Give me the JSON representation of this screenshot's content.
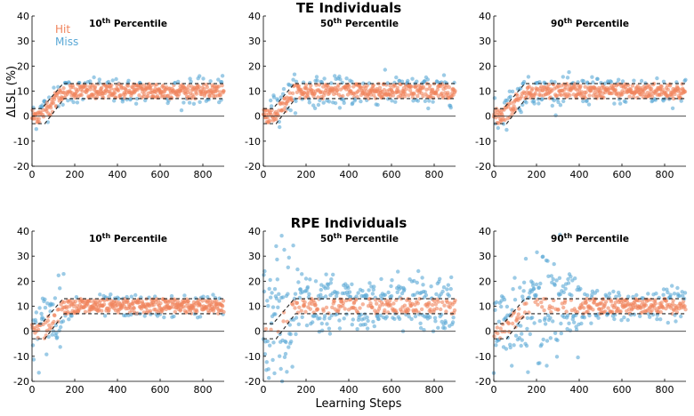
{
  "colors": {
    "hit": "#f0845c",
    "miss": "#5aa8d6",
    "band": "#222222",
    "axis": "#000000"
  },
  "legend": {
    "hit": "Hit",
    "miss": "Miss"
  },
  "ylabel": "ΔLSL (%)",
  "xlabel": "Learning Steps",
  "row_titles": [
    "TE Individuals",
    "RPE Individuals"
  ],
  "chart_data": [
    {
      "type": "scatter",
      "group": "TE Individuals",
      "title_sup": "th",
      "title_num": "10",
      "title": "Percentile",
      "xlim": [
        0,
        900
      ],
      "ylim": [
        -20,
        40
      ],
      "xticks": [
        0,
        200,
        400,
        600,
        800
      ],
      "yticks": [
        -20,
        -10,
        0,
        10,
        20,
        30,
        40
      ],
      "noise_sd_early": 2.5,
      "noise_sd_late": 2.2,
      "mid_sd": 0
    },
    {
      "type": "scatter",
      "group": "TE Individuals",
      "title_sup": "th",
      "title_num": "50",
      "title": "Percentile",
      "xlim": [
        0,
        900
      ],
      "ylim": [
        -20,
        40
      ],
      "xticks": [
        0,
        200,
        400,
        600,
        800
      ],
      "yticks": [
        -20,
        -10,
        0,
        10,
        20,
        30,
        40
      ],
      "noise_sd_early": 3,
      "noise_sd_late": 2.6,
      "mid_sd": 0
    },
    {
      "type": "scatter",
      "group": "TE Individuals",
      "title_sup": "th",
      "title_num": "90",
      "title": "Percentile",
      "xlim": [
        0,
        900
      ],
      "ylim": [
        -20,
        40
      ],
      "xticks": [
        0,
        200,
        400,
        600,
        800
      ],
      "yticks": [
        -20,
        -10,
        0,
        10,
        20,
        30,
        40
      ],
      "noise_sd_early": 3,
      "noise_sd_late": 2.4,
      "mid_sd": 0
    },
    {
      "type": "scatter",
      "group": "RPE Individuals",
      "title_sup": "th",
      "title_num": "10",
      "title": "Percentile",
      "xlim": [
        0,
        900
      ],
      "ylim": [
        -20,
        40
      ],
      "xticks": [
        0,
        200,
        400,
        600,
        800
      ],
      "yticks": [
        -20,
        -10,
        0,
        10,
        20,
        30,
        40
      ],
      "noise_sd_early": 6,
      "noise_sd_late": 2.0,
      "mid_sd": 0
    },
    {
      "type": "scatter",
      "group": "RPE Individuals",
      "title_sup": "th",
      "title_num": "50",
      "title": "Percentile",
      "xlim": [
        0,
        900
      ],
      "ylim": [
        -20,
        40
      ],
      "xticks": [
        0,
        200,
        400,
        600,
        800
      ],
      "yticks": [
        -20,
        -10,
        0,
        10,
        20,
        30,
        40
      ],
      "noise_sd_early": 15,
      "noise_sd_late": 4.2,
      "mid_sd": 0
    },
    {
      "type": "scatter",
      "group": "RPE Individuals",
      "title_sup": "th",
      "title_num": "90",
      "title": "Percentile",
      "xlim": [
        0,
        900
      ],
      "ylim": [
        -20,
        40
      ],
      "xticks": [
        0,
        200,
        400,
        600,
        800
      ],
      "yticks": [
        -20,
        -10,
        0,
        10,
        20,
        30,
        40
      ],
      "noise_sd_early": 7,
      "noise_sd_late": 3.0,
      "mid_sd": 9
    }
  ],
  "band": {
    "upper": [
      [
        0,
        3
      ],
      [
        45,
        3
      ],
      [
        145,
        13
      ],
      [
        900,
        13
      ]
    ],
    "lower": [
      [
        0,
        -3
      ],
      [
        60,
        -3
      ],
      [
        150,
        7
      ],
      [
        900,
        7
      ]
    ],
    "target": [
      [
        0,
        0
      ],
      [
        20,
        0
      ],
      [
        150,
        10
      ],
      [
        900,
        10
      ]
    ]
  }
}
